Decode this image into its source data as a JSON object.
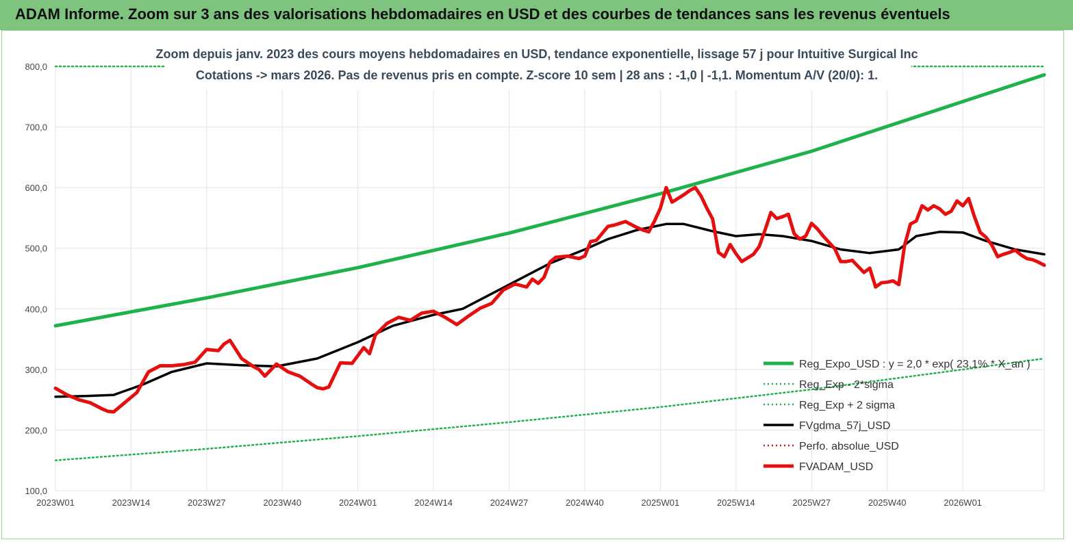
{
  "banner": {
    "title": "ADAM Informe. Zoom sur 3 ans des valorisations hebdomadaires en USD et des courbes de tendances sans les revenus éventuels"
  },
  "colors": {
    "banner_bg": "#7ec47e",
    "trend": "#1fb14a",
    "smooth": "#000000",
    "price": "#e41010",
    "perf": "#e41010"
  },
  "chart_data": {
    "type": "line",
    "title_lines": [
      "Zoom depuis janv. 2023 des cours moyens hebdomadaires en USD, tendance exponentielle, lissage 57 j pour Intuitive Surgical Inc",
      "Cotations -> mars 2026. Pas de revenus pris en compte. Z-score 10 sem | 28 ans : -1,0 | -1,1. Momentum A/V (20/0): 1."
    ],
    "ylim": [
      100,
      800
    ],
    "y_ticks": [
      "100,0",
      "200,0",
      "300,0",
      "400,0",
      "500,0",
      "600,0",
      "700,0",
      "800,0"
    ],
    "x_ticks": [
      "2023W01",
      "2023W14",
      "2023W27",
      "2023W40",
      "2024W01",
      "2024W14",
      "2024W27",
      "2024W40",
      "2025W01",
      "2025W14",
      "2025W27",
      "2025W40",
      "2026W01"
    ],
    "x_tick_weeks": [
      0,
      13,
      26,
      39,
      52,
      65,
      78,
      91,
      104,
      117,
      130,
      143,
      156
    ],
    "n_weeks": 170,
    "grid": true,
    "legend_position": "bottom-right",
    "series": [
      {
        "name": "Reg_Expo_USD : y = 2,0 * exp( 23,1% * X_an )",
        "style": "solid-thick",
        "color": "#1fb14a",
        "x": [
          0,
          26,
          52,
          78,
          104,
          130,
          156,
          170
        ],
        "values": [
          372,
          418,
          468,
          525,
          590,
          660,
          742,
          786
        ]
      },
      {
        "name": "Reg_Exp - 2*sigma",
        "style": "dotted",
        "color": "#1fb14a",
        "x": [
          0,
          26,
          52,
          78,
          104,
          130,
          156,
          170
        ],
        "values": [
          150,
          169,
          190,
          213,
          238,
          267,
          300,
          318
        ]
      },
      {
        "name": "Reg_Exp + 2 sigma",
        "style": "dotted",
        "color": "#1fb14a",
        "x": [
          0,
          170
        ],
        "values": [
          800,
          800
        ]
      },
      {
        "name": "FVgdma_57j_USD",
        "style": "solid",
        "color": "#000000",
        "x": [
          0,
          5,
          10,
          15,
          20,
          26,
          32,
          38,
          45,
          52,
          58,
          65,
          70,
          78,
          85,
          91,
          95,
          100,
          105,
          108,
          113,
          117,
          121,
          125,
          130,
          135,
          140,
          145,
          148,
          152,
          156,
          160,
          165,
          170
        ],
        "values": [
          255,
          256,
          258,
          275,
          296,
          310,
          307,
          305,
          318,
          345,
          372,
          390,
          400,
          440,
          475,
          498,
          515,
          530,
          540,
          540,
          528,
          520,
          523,
          520,
          512,
          498,
          492,
          498,
          520,
          527,
          526,
          512,
          498,
          490
        ]
      },
      {
        "name": "Perfo. absolue_USD",
        "style": "dotted",
        "color": "#e41010",
        "x": [],
        "values": []
      },
      {
        "name": "FVADAM_USD",
        "style": "solid-thick",
        "color": "#e41010",
        "x": [
          0,
          2,
          4,
          6,
          8,
          9,
          10,
          12,
          14,
          16,
          18,
          20,
          22,
          24,
          26,
          28,
          29,
          30,
          32,
          34,
          35,
          36,
          38,
          40,
          42,
          44,
          45,
          46,
          47,
          49,
          51,
          53,
          54,
          55,
          57,
          59,
          61,
          63,
          65,
          67,
          69,
          71,
          73,
          75,
          77,
          79,
          81,
          82,
          83,
          84,
          85,
          86,
          88,
          90,
          91,
          92,
          93,
          95,
          96,
          98,
          100,
          101,
          102,
          103,
          104,
          105,
          106,
          107,
          108,
          109,
          110,
          111,
          112,
          113,
          114,
          115,
          116,
          117,
          118,
          120,
          121,
          122,
          123,
          124,
          125,
          126,
          127,
          128,
          129,
          130,
          131,
          132,
          134,
          135,
          136,
          137,
          138,
          139,
          140,
          141,
          142,
          143,
          144,
          145,
          146,
          147,
          148,
          149,
          150,
          151,
          152,
          153,
          154,
          155,
          156,
          157,
          158,
          159,
          160,
          161,
          162,
          163,
          164,
          165,
          166,
          167,
          168,
          169,
          170
        ],
        "values": [
          269,
          258,
          250,
          245,
          235,
          231,
          230,
          246,
          262,
          296,
          306,
          306,
          308,
          312,
          333,
          331,
          342,
          348,
          318,
          305,
          300,
          289,
          309,
          296,
          289,
          276,
          270,
          268,
          271,
          311,
          310,
          336,
          326,
          357,
          376,
          386,
          381,
          393,
          396,
          386,
          374,
          388,
          401,
          409,
          431,
          441,
          436,
          449,
          442,
          452,
          477,
          485,
          487,
          483,
          487,
          511,
          513,
          536,
          538,
          544,
          534,
          530,
          527,
          545,
          566,
          600,
          576,
          582,
          588,
          595,
          600,
          586,
          566,
          548,
          493,
          486,
          506,
          491,
          478,
          490,
          503,
          530,
          559,
          549,
          552,
          556,
          524,
          515,
          520,
          541,
          532,
          520,
          499,
          478,
          478,
          480,
          470,
          460,
          467,
          436,
          443,
          444,
          446,
          440,
          505,
          540,
          545,
          570,
          563,
          570,
          565,
          556,
          561,
          578,
          570,
          582,
          552,
          526,
          518,
          505,
          486,
          490,
          493,
          497,
          489,
          483,
          481,
          477,
          472
        ]
      }
    ]
  }
}
